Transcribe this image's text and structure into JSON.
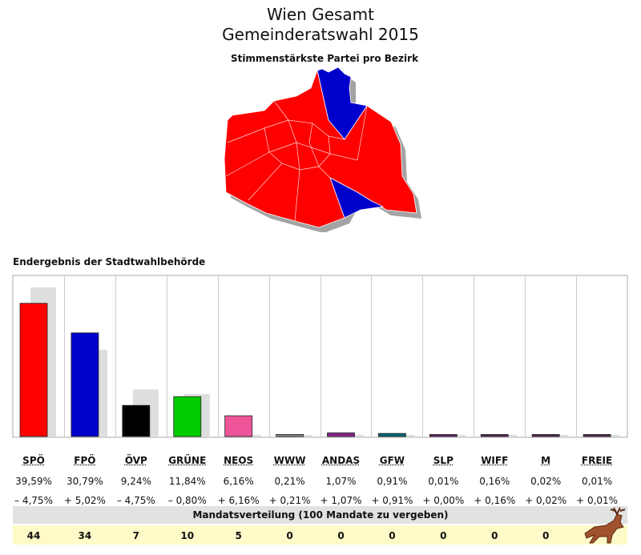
{
  "header": {
    "title": "Wien Gesamt",
    "subtitle": "Gemeinderatswahl 2015",
    "map_title": "Stimmenstärkste Partei pro Bezirk",
    "result_title": "Endergebnis der Stadtwahlbehörde",
    "mandate_title": "Mandatsverteilung (100 Mandate zu vergeben)"
  },
  "colors": {
    "red": "#ff0000",
    "blue": "#0000cc",
    "prev": "#dedede"
  },
  "chart_data": {
    "type": "bar",
    "categories": [
      "SPÖ",
      "FPÖ",
      "ÖVP",
      "GRÜNE",
      "NEOS",
      "WWW",
      "ANDAS",
      "GFW",
      "SLP",
      "WIFF",
      "M",
      "FREIE"
    ],
    "values": [
      39.59,
      30.79,
      9.24,
      11.84,
      6.16,
      0.21,
      1.07,
      0.91,
      0.01,
      0.16,
      0.02,
      0.01
    ],
    "previous_values": [
      44.34,
      25.77,
      13.99,
      12.64,
      0,
      0,
      0,
      0,
      0.01,
      0,
      0,
      0
    ],
    "value_labels": [
      "39,59%",
      "30,79%",
      "9,24%",
      "11,84%",
      "6,16%",
      "0,21%",
      "1,07%",
      "0,91%",
      "0,01%",
      "0,16%",
      "0,02%",
      "0,01%"
    ],
    "diff_labels": [
      "– 4,75%",
      "+ 5,02%",
      "– 4,75%",
      "– 0,80%",
      "+ 6,16%",
      "+ 0,21%",
      "+ 1,07%",
      "+ 0,91%",
      "+ 0,00%",
      "+ 0,16%",
      "+ 0,02%",
      "+ 0,01%"
    ],
    "colors": [
      "#ff0000",
      "#0000cc",
      "#000000",
      "#00cc00",
      "#ee5599",
      "#888888",
      "#882288",
      "#006677",
      "#662266",
      "#552255",
      "#552255",
      "#552255"
    ],
    "seats": [
      "44",
      "34",
      "7",
      "10",
      "5",
      "0",
      "0",
      "0",
      "0",
      "0",
      "0",
      ""
    ],
    "ylim": [
      0,
      50
    ]
  }
}
